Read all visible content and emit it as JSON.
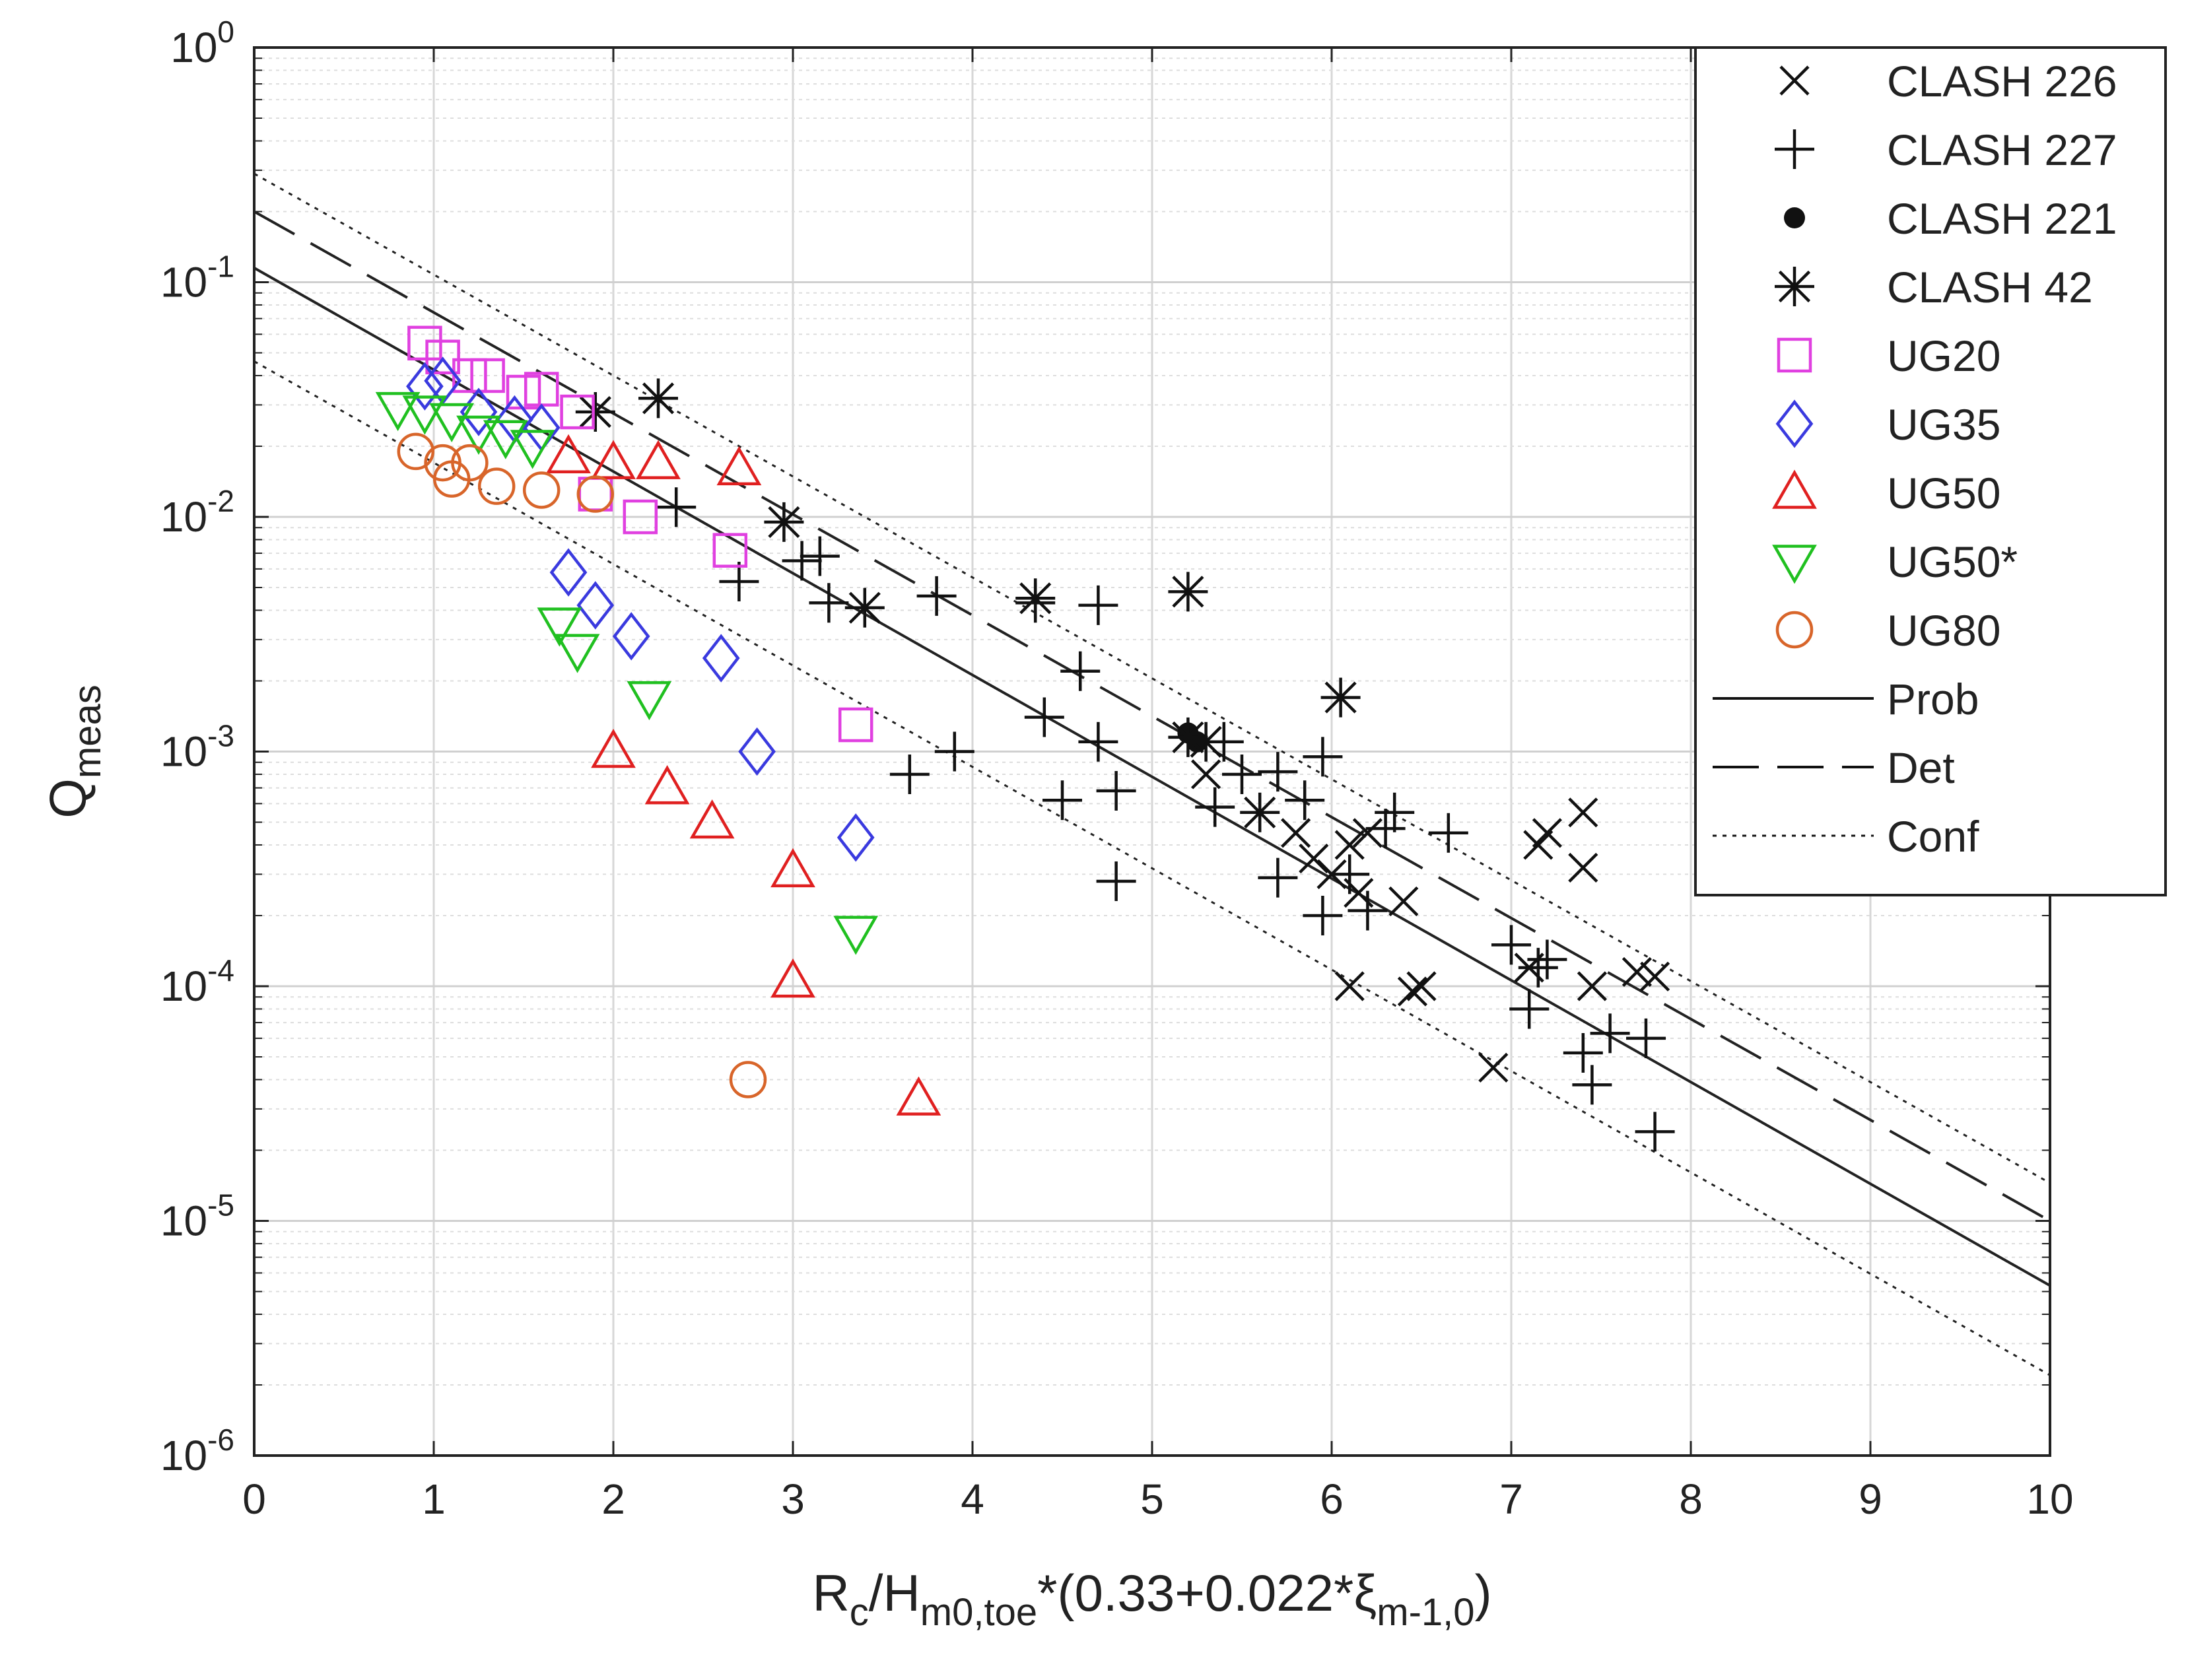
{
  "chart_data": {
    "type": "scatter",
    "yscale": "log",
    "xlim": [
      0,
      10
    ],
    "ylim": [
      1e-06,
      1
    ],
    "grid": true,
    "legend_position": "top-right",
    "xticks": [
      "0",
      "1",
      "2",
      "3",
      "4",
      "5",
      "6",
      "7",
      "8",
      "9",
      "10"
    ],
    "yticks": [
      {
        "base": "10",
        "exp": "0",
        "value": 1
      },
      {
        "base": "10",
        "exp": "-1",
        "value": 0.1
      },
      {
        "base": "10",
        "exp": "-2",
        "value": 0.01
      },
      {
        "base": "10",
        "exp": "-3",
        "value": 0.001
      },
      {
        "base": "10",
        "exp": "-4",
        "value": 0.0001
      },
      {
        "base": "10",
        "exp": "-5",
        "value": 1e-05
      },
      {
        "base": "10",
        "exp": "-6",
        "value": 1e-06
      }
    ],
    "xlabel": {
      "parts": [
        {
          "text": "R",
          "sub": false
        },
        {
          "text": "c",
          "sub": true
        },
        {
          "text": "/H",
          "sub": false
        },
        {
          "text": "m0,toe",
          "sub": true
        },
        {
          "text": "*(0.33+0.022*",
          "sub": false
        },
        {
          "text": "ξ",
          "sub": false
        },
        {
          "text": "m-1,0",
          "sub": true
        },
        {
          "text": ")",
          "sub": false
        }
      ]
    },
    "ylabel": {
      "parts": [
        {
          "text": "Q",
          "sub": false
        },
        {
          "text": "meas",
          "sub": true
        }
      ]
    },
    "series": [
      {
        "name": "CLASH 226",
        "marker": "x",
        "color": "#111111",
        "points": [
          [
            5.3,
            0.0008
          ],
          [
            5.8,
            0.00045
          ],
          [
            5.9,
            0.00035
          ],
          [
            6.0,
            0.0003
          ],
          [
            6.1,
            0.0004
          ],
          [
            6.15,
            0.00025
          ],
          [
            6.2,
            0.00045
          ],
          [
            6.4,
            0.00023
          ],
          [
            6.1,
            0.0001
          ],
          [
            6.5,
            0.0001
          ],
          [
            6.45,
            9.5e-05
          ],
          [
            6.9,
            4.5e-05
          ],
          [
            7.15,
            0.0004
          ],
          [
            7.2,
            0.00045
          ],
          [
            7.4,
            0.00055
          ],
          [
            7.4,
            0.00032
          ],
          [
            7.1,
            0.00012
          ],
          [
            7.45,
            0.0001
          ],
          [
            7.7,
            0.000115
          ],
          [
            7.8,
            0.00011
          ]
        ]
      },
      {
        "name": "CLASH 227",
        "marker": "plus",
        "color": "#111111",
        "points": [
          [
            2.35,
            0.011
          ],
          [
            2.7,
            0.0053
          ],
          [
            3.05,
            0.0065
          ],
          [
            3.15,
            0.0068
          ],
          [
            3.2,
            0.0043
          ],
          [
            3.8,
            0.0046
          ],
          [
            4.35,
            0.0043
          ],
          [
            4.7,
            0.0042
          ],
          [
            4.6,
            0.0022
          ],
          [
            4.4,
            0.0014
          ],
          [
            4.7,
            0.0011
          ],
          [
            3.65,
            0.0008
          ],
          [
            3.9,
            0.001
          ],
          [
            4.5,
            0.00062
          ],
          [
            4.8,
            0.00068
          ],
          [
            4.8,
            0.00028
          ],
          [
            5.4,
            0.0011
          ],
          [
            5.5,
            0.0008
          ],
          [
            5.7,
            0.00082
          ],
          [
            5.35,
            0.00058
          ],
          [
            5.85,
            0.00062
          ],
          [
            5.95,
            0.00095
          ],
          [
            5.7,
            0.00029
          ],
          [
            5.95,
            0.0002
          ],
          [
            6.1,
            0.0003
          ],
          [
            6.3,
            0.00047
          ],
          [
            6.35,
            0.00055
          ],
          [
            6.65,
            0.00045
          ],
          [
            6.2,
            0.00021
          ],
          [
            7.0,
            0.00015
          ],
          [
            7.15,
            0.00012
          ],
          [
            7.2,
            0.00013
          ],
          [
            7.1,
            8e-05
          ],
          [
            7.4,
            5.2e-05
          ],
          [
            7.55,
            6.3e-05
          ],
          [
            7.45,
            3.8e-05
          ],
          [
            7.75,
            6e-05
          ],
          [
            7.8,
            2.4e-05
          ]
        ]
      },
      {
        "name": "CLASH 221",
        "marker": "dot",
        "color": "#111111",
        "points": [
          [
            5.2,
            0.0012
          ],
          [
            5.25,
            0.0011
          ]
        ]
      },
      {
        "name": "CLASH 42",
        "marker": "star",
        "color": "#111111",
        "points": [
          [
            1.9,
            0.028
          ],
          [
            2.25,
            0.032
          ],
          [
            2.95,
            0.0095
          ],
          [
            3.4,
            0.0041
          ],
          [
            4.35,
            0.0045
          ],
          [
            5.2,
            0.0048
          ],
          [
            6.05,
            0.0017
          ],
          [
            5.2,
            0.00115
          ],
          [
            5.3,
            0.0011
          ],
          [
            5.6,
            0.00055
          ]
        ]
      },
      {
        "name": "UG20",
        "marker": "square",
        "color": "#e040e0",
        "points": [
          [
            0.95,
            0.055
          ],
          [
            1.05,
            0.048
          ],
          [
            1.2,
            0.04
          ],
          [
            1.3,
            0.04
          ],
          [
            1.5,
            0.034
          ],
          [
            1.6,
            0.035
          ],
          [
            1.8,
            0.028
          ],
          [
            1.9,
            0.0125
          ],
          [
            2.15,
            0.01
          ],
          [
            2.65,
            0.0072
          ],
          [
            3.35,
            0.0013
          ]
        ]
      },
      {
        "name": "UG35",
        "marker": "diamond",
        "color": "#3a3adf",
        "points": [
          [
            0.95,
            0.036
          ],
          [
            1.05,
            0.038
          ],
          [
            1.25,
            0.028
          ],
          [
            1.45,
            0.026
          ],
          [
            1.6,
            0.024
          ],
          [
            1.75,
            0.0058
          ],
          [
            1.9,
            0.0042
          ],
          [
            2.1,
            0.0031
          ],
          [
            2.6,
            0.0025
          ],
          [
            2.8,
            0.001
          ],
          [
            3.35,
            0.00043
          ]
        ]
      },
      {
        "name": "UG50",
        "marker": "triangle-up",
        "color": "#e02020",
        "points": [
          [
            1.75,
            0.018
          ],
          [
            2.0,
            0.017
          ],
          [
            2.25,
            0.017
          ],
          [
            2.7,
            0.016
          ],
          [
            2.0,
            0.001
          ],
          [
            2.3,
            0.0007
          ],
          [
            2.55,
            0.0005
          ],
          [
            3.0,
            0.00031
          ],
          [
            3.0,
            0.000105
          ],
          [
            3.7,
            3.3e-05
          ]
        ]
      },
      {
        "name": "UG50*",
        "marker": "triangle-down",
        "color": "#20c020",
        "points": [
          [
            0.8,
            0.029
          ],
          [
            0.95,
            0.028
          ],
          [
            1.1,
            0.026
          ],
          [
            1.25,
            0.023
          ],
          [
            1.4,
            0.022
          ],
          [
            1.55,
            0.02
          ],
          [
            1.7,
            0.0035
          ],
          [
            1.8,
            0.0027
          ],
          [
            2.2,
            0.0017
          ],
          [
            3.35,
            0.00017
          ]
        ]
      },
      {
        "name": "UG80",
        "marker": "circle",
        "color": "#d8652a",
        "points": [
          [
            0.9,
            0.019
          ],
          [
            1.05,
            0.017
          ],
          [
            1.1,
            0.0145
          ],
          [
            1.2,
            0.017
          ],
          [
            1.35,
            0.0135
          ],
          [
            1.6,
            0.013
          ],
          [
            1.9,
            0.0125
          ],
          [
            2.75,
            4e-05
          ]
        ]
      }
    ],
    "lines": [
      {
        "name": "Prob",
        "style": "solid",
        "x": [
          0,
          10
        ],
        "y": [
          0.115,
          5.3e-06
        ]
      },
      {
        "name": "Det",
        "style": "dashed",
        "x": [
          0,
          10
        ],
        "y": [
          0.2,
          1e-05
        ]
      },
      {
        "name": "Conf",
        "style": "dotted",
        "x": [
          0,
          10
        ],
        "y": [
          0.29,
          1.45e-05
        ]
      },
      {
        "name": "Conf",
        "style": "dotted",
        "x": [
          0,
          10
        ],
        "y": [
          0.046,
          2.2e-06
        ]
      }
    ],
    "legend": [
      {
        "label": "CLASH 226",
        "marker": "x",
        "color": "#111111"
      },
      {
        "label": "CLASH 227",
        "marker": "plus",
        "color": "#111111"
      },
      {
        "label": "CLASH 221",
        "marker": "dot",
        "color": "#111111"
      },
      {
        "label": "CLASH 42",
        "marker": "star",
        "color": "#111111"
      },
      {
        "label": "UG20",
        "marker": "square",
        "color": "#e040e0"
      },
      {
        "label": "UG35",
        "marker": "diamond",
        "color": "#3a3adf"
      },
      {
        "label": "UG50",
        "marker": "triangle-up",
        "color": "#e02020"
      },
      {
        "label": "UG50*",
        "marker": "triangle-down",
        "color": "#20c020"
      },
      {
        "label": "UG80",
        "marker": "circle",
        "color": "#d8652a"
      },
      {
        "label": "Prob",
        "line": "solid",
        "color": "#111111"
      },
      {
        "label": "Det",
        "line": "dashed",
        "color": "#111111"
      },
      {
        "label": "Conf",
        "line": "dotted",
        "color": "#111111"
      }
    ]
  }
}
